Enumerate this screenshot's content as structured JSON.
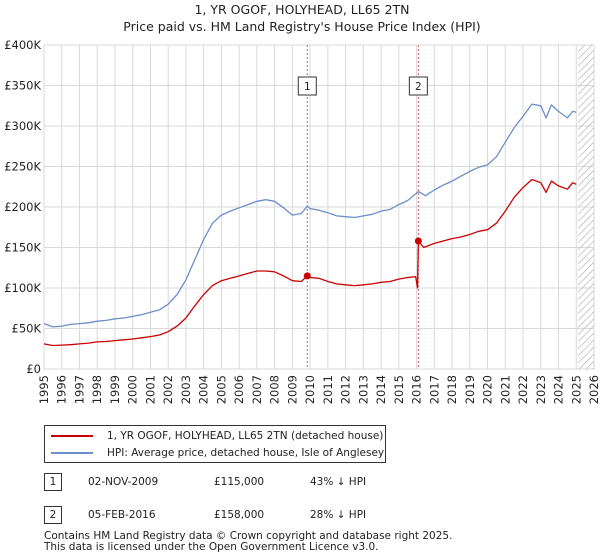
{
  "chart_data": {
    "type": "line",
    "title": "1, YR OGOF, HOLYHEAD, LL65 2TN",
    "subtitle": "Price paid vs. HM Land Registry's House Price Index (HPI)",
    "x_range": [
      1995,
      2026
    ],
    "ylim": [
      0,
      400000
    ],
    "y_ticks": [
      {
        "value": 0,
        "label": "£0"
      },
      {
        "value": 50000,
        "label": "£50K"
      },
      {
        "value": 100000,
        "label": "£100K"
      },
      {
        "value": 150000,
        "label": "£150K"
      },
      {
        "value": 200000,
        "label": "£200K"
      },
      {
        "value": 250000,
        "label": "£250K"
      },
      {
        "value": 300000,
        "label": "£300K"
      },
      {
        "value": 350000,
        "label": "£350K"
      },
      {
        "value": 400000,
        "label": "£400K"
      }
    ],
    "x_ticks": [
      "1995",
      "1996",
      "1997",
      "1998",
      "1999",
      "2000",
      "2001",
      "2002",
      "2003",
      "2004",
      "2005",
      "2006",
      "2007",
      "2008",
      "2009",
      "2010",
      "2011",
      "2012",
      "2013",
      "2014",
      "2015",
      "2016",
      "2017",
      "2018",
      "2019",
      "2020",
      "2021",
      "2022",
      "2023",
      "2024",
      "2025",
      "2026"
    ],
    "grid": true,
    "hatch_from": 2025.1,
    "series": [
      {
        "name": "1, YR OGOF, HOLYHEAD, LL65 2TN (detached house)",
        "color": "#cc0000",
        "points": [
          [
            1995.0,
            31000
          ],
          [
            1995.5,
            29000
          ],
          [
            1996.0,
            29500
          ],
          [
            1996.5,
            30000
          ],
          [
            1997.0,
            31000
          ],
          [
            1997.5,
            32000
          ],
          [
            1998.0,
            33500
          ],
          [
            1998.5,
            34000
          ],
          [
            1999.0,
            35000
          ],
          [
            1999.5,
            36000
          ],
          [
            2000.0,
            37000
          ],
          [
            2000.5,
            38500
          ],
          [
            2001.0,
            40000
          ],
          [
            2001.5,
            42000
          ],
          [
            2002.0,
            46000
          ],
          [
            2002.5,
            53000
          ],
          [
            2003.0,
            63000
          ],
          [
            2003.5,
            78000
          ],
          [
            2004.0,
            92000
          ],
          [
            2004.5,
            103000
          ],
          [
            2005.0,
            109000
          ],
          [
            2005.5,
            112000
          ],
          [
            2006.0,
            115000
          ],
          [
            2006.5,
            118000
          ],
          [
            2007.0,
            121000
          ],
          [
            2007.5,
            121000
          ],
          [
            2008.0,
            120000
          ],
          [
            2008.5,
            115000
          ],
          [
            2009.0,
            109000
          ],
          [
            2009.5,
            108000
          ],
          [
            2009.84,
            115000
          ],
          [
            2010.0,
            113000
          ],
          [
            2010.5,
            112000
          ],
          [
            2011.0,
            108000
          ],
          [
            2011.5,
            105000
          ],
          [
            2012.0,
            104000
          ],
          [
            2012.5,
            103000
          ],
          [
            2013.0,
            104000
          ],
          [
            2013.5,
            105000
          ],
          [
            2014.0,
            107000
          ],
          [
            2014.5,
            108000
          ],
          [
            2015.0,
            111000
          ],
          [
            2015.5,
            113000
          ],
          [
            2015.95,
            114000
          ],
          [
            2016.05,
            100000
          ],
          [
            2016.1,
            158000
          ],
          [
            2016.4,
            150000
          ],
          [
            2017.0,
            155000
          ],
          [
            2017.5,
            158000
          ],
          [
            2018.0,
            161000
          ],
          [
            2018.5,
            163000
          ],
          [
            2019.0,
            166000
          ],
          [
            2019.5,
            170000
          ],
          [
            2020.0,
            172000
          ],
          [
            2020.5,
            180000
          ],
          [
            2021.0,
            195000
          ],
          [
            2021.5,
            212000
          ],
          [
            2022.0,
            224000
          ],
          [
            2022.5,
            234000
          ],
          [
            2023.0,
            230000
          ],
          [
            2023.3,
            218000
          ],
          [
            2023.6,
            232000
          ],
          [
            2024.0,
            226000
          ],
          [
            2024.5,
            222000
          ],
          [
            2024.8,
            230000
          ],
          [
            2025.0,
            228000
          ]
        ]
      },
      {
        "name": "HPI: Average price, detached house, Isle of Anglesey",
        "color": "#6b8fc9",
        "points": [
          [
            1995.0,
            56000
          ],
          [
            1995.5,
            52000
          ],
          [
            1996.0,
            53000
          ],
          [
            1996.5,
            55000
          ],
          [
            1997.0,
            56000
          ],
          [
            1997.5,
            57000
          ],
          [
            1998.0,
            59000
          ],
          [
            1998.5,
            60000
          ],
          [
            1999.0,
            62000
          ],
          [
            1999.5,
            63000
          ],
          [
            2000.0,
            65000
          ],
          [
            2000.5,
            67000
          ],
          [
            2001.0,
            70000
          ],
          [
            2001.5,
            73000
          ],
          [
            2002.0,
            80000
          ],
          [
            2002.5,
            92000
          ],
          [
            2003.0,
            110000
          ],
          [
            2003.5,
            135000
          ],
          [
            2004.0,
            160000
          ],
          [
            2004.5,
            180000
          ],
          [
            2005.0,
            190000
          ],
          [
            2005.5,
            195000
          ],
          [
            2006.0,
            199000
          ],
          [
            2006.5,
            203000
          ],
          [
            2007.0,
            207000
          ],
          [
            2007.5,
            209000
          ],
          [
            2008.0,
            207000
          ],
          [
            2008.5,
            199000
          ],
          [
            2009.0,
            190000
          ],
          [
            2009.5,
            192000
          ],
          [
            2009.84,
            201000
          ],
          [
            2010.0,
            198000
          ],
          [
            2010.5,
            196000
          ],
          [
            2011.0,
            193000
          ],
          [
            2011.5,
            189000
          ],
          [
            2012.0,
            188000
          ],
          [
            2012.5,
            187000
          ],
          [
            2013.0,
            189000
          ],
          [
            2013.5,
            191000
          ],
          [
            2014.0,
            195000
          ],
          [
            2014.5,
            197000
          ],
          [
            2015.0,
            203000
          ],
          [
            2015.5,
            208000
          ],
          [
            2016.1,
            219000
          ],
          [
            2016.5,
            214000
          ],
          [
            2017.0,
            221000
          ],
          [
            2017.5,
            227000
          ],
          [
            2018.0,
            232000
          ],
          [
            2018.5,
            238000
          ],
          [
            2019.0,
            244000
          ],
          [
            2019.5,
            249000
          ],
          [
            2020.0,
            252000
          ],
          [
            2020.5,
            262000
          ],
          [
            2021.0,
            280000
          ],
          [
            2021.5,
            298000
          ],
          [
            2022.0,
            312000
          ],
          [
            2022.5,
            327000
          ],
          [
            2023.0,
            325000
          ],
          [
            2023.3,
            310000
          ],
          [
            2023.6,
            326000
          ],
          [
            2024.0,
            318000
          ],
          [
            2024.5,
            310000
          ],
          [
            2024.8,
            318000
          ],
          [
            2025.0,
            317000
          ]
        ]
      }
    ],
    "transactions": [
      {
        "num": "1",
        "x": 2009.84,
        "price": 115000,
        "date": "02-NOV-2009",
        "price_label": "£115,000",
        "hpi_label": "43% ↓ HPI"
      },
      {
        "num": "2",
        "x": 2016.1,
        "price": 158000,
        "date": "05-FEB-2016",
        "price_label": "£158,000",
        "hpi_label": "28% ↓ HPI"
      }
    ]
  },
  "legend": {
    "items": [
      {
        "label": "1, YR OGOF, HOLYHEAD, LL65 2TN (detached house)",
        "color": "#cc0000"
      },
      {
        "label": "HPI: Average price, detached house, Isle of Anglesey",
        "color": "#6b8fc9"
      }
    ]
  },
  "footer": {
    "line1": "Contains HM Land Registry data © Crown copyright and database right 2025.",
    "line2": "This data is licensed under the Open Government Licence v3.0."
  }
}
